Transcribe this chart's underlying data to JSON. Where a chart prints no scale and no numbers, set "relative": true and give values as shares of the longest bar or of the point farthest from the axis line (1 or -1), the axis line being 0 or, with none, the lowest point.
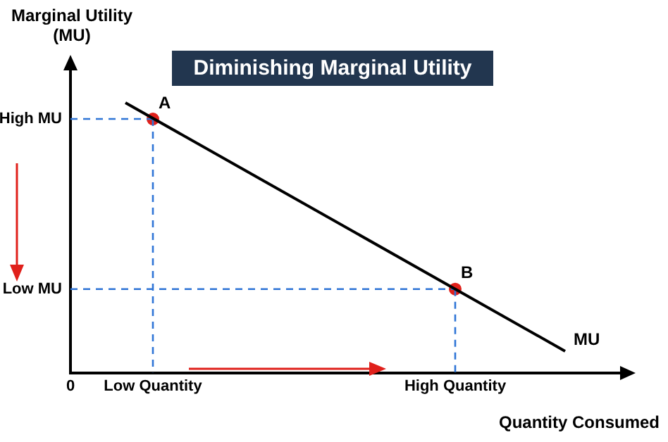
{
  "chart_data": {
    "type": "line",
    "title": "Diminishing Marginal Utility",
    "ylabel": "Marginal Utility\n(MU)",
    "xlabel": "Quantity Consumed",
    "relative": true,
    "categories": [
      "0",
      null,
      null,
      "Low Quantity",
      null,
      null,
      null,
      null,
      null,
      null,
      null,
      null,
      null,
      null,
      "High Quantity",
      null,
      null,
      null,
      null,
      null,
      null
    ],
    "grid": false,
    "legend": false,
    "series": [
      {
        "type": "line",
        "name": "MU",
        "color": "#000000",
        "marker": "none",
        "values": [
          null,
          null,
          1,
          null,
          null,
          null,
          null,
          null,
          null,
          null,
          null,
          null,
          null,
          null,
          null,
          null,
          null,
          null,
          0.08,
          null,
          null
        ]
      },
      {
        "type": "line",
        "name": "High MU",
        "color": "#2f75d6",
        "line_style": "dashed",
        "marker": "none",
        "values": [
          0.94,
          0.94,
          0.94,
          0.94,
          null,
          null,
          null,
          null,
          null,
          null,
          null,
          null,
          null,
          null,
          null,
          null,
          null,
          null,
          null,
          null,
          null
        ]
      },
      {
        "type": "line",
        "color": "#2f75d6",
        "line_style": "dashed",
        "marker": "none",
        "x": [
          "Low Quantity",
          "Low Quantity"
        ],
        "values": [
          0.94,
          0
        ]
      },
      {
        "type": "line",
        "name": "Low MU",
        "color": "#2f75d6",
        "line_style": "dashed",
        "marker": "none",
        "values": [
          0.31,
          0.31,
          0.31,
          0.31,
          0.31,
          0.31,
          0.31,
          0.31,
          0.31,
          0.31,
          0.31,
          0.31,
          0.31,
          0.31,
          0.31,
          null,
          null,
          null,
          null,
          null,
          null
        ]
      },
      {
        "type": "line",
        "color": "#2f75d6",
        "line_style": "dashed",
        "marker": "none",
        "x": [
          "High Quantity",
          "High Quantity"
        ],
        "values": [
          0.31,
          0
        ]
      },
      {
        "type": "scatter",
        "color": "#e0201b",
        "marker": "circle",
        "x": [
          "Low Quantity",
          "High Quantity"
        ],
        "values": [
          0.94,
          0.31
        ]
      }
    ],
    "annotations": [
      {
        "text": "A",
        "x": "Low Quantity",
        "y": 0.94
      },
      {
        "text": "B",
        "x": "High Quantity",
        "y": 0.31
      }
    ]
  }
}
